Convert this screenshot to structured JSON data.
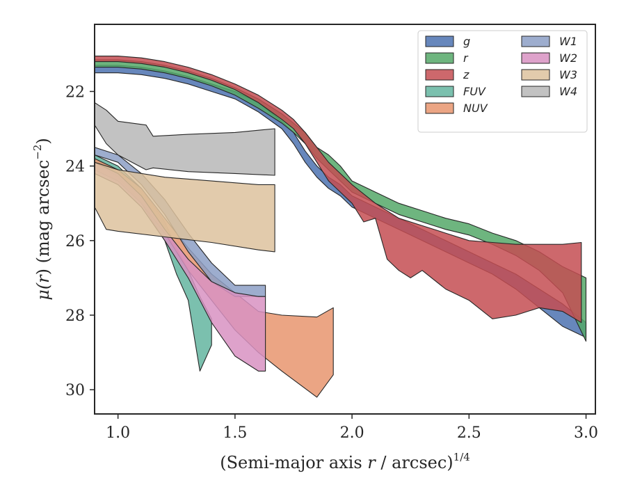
{
  "chart_data": {
    "type": "area",
    "xlabel": "(Semi-major axis r / arcsec)",
    "xlabel_main": "(Semi-major axis ",
    "xlabel_var": "r",
    "xlabel_rest": " / arcsec)",
    "xlabel_exp": "1/4",
    "ylabel_mu": "μ(",
    "ylabel_var": "r",
    "ylabel_mid": ") (mag arcsec",
    "ylabel_exp": "−2",
    "ylabel_end": ")",
    "xlim": [
      0.9,
      3.04
    ],
    "ylim": [
      30.65,
      20.2
    ],
    "y_inverted": true,
    "x_ticks": [
      1.0,
      1.5,
      2.0,
      2.5,
      3.0
    ],
    "x_tick_labels": [
      "1.0",
      "1.5",
      "2.0",
      "2.5",
      "3.0"
    ],
    "y_ticks": [
      22,
      24,
      26,
      28,
      30
    ],
    "y_tick_labels": [
      "22",
      "24",
      "26",
      "28",
      "30"
    ],
    "grid": false,
    "legend": {
      "placement": "top-right",
      "columns": 2
    },
    "series": [
      {
        "name": "g",
        "color": "#4c72b0",
        "upper": [
          [
            0.9,
            21.3
          ],
          [
            1.0,
            21.3
          ],
          [
            1.1,
            21.35
          ],
          [
            1.2,
            21.45
          ],
          [
            1.3,
            21.6
          ],
          [
            1.4,
            21.8
          ],
          [
            1.5,
            22.0
          ],
          [
            1.6,
            22.3
          ],
          [
            1.7,
            22.8
          ],
          [
            1.75,
            23.1
          ],
          [
            1.8,
            23.6
          ],
          [
            1.85,
            24.0
          ],
          [
            1.9,
            24.3
          ],
          [
            1.95,
            24.5
          ],
          [
            2.0,
            24.8
          ],
          [
            2.1,
            25.1
          ],
          [
            2.2,
            25.4
          ],
          [
            2.3,
            25.7
          ],
          [
            2.4,
            26.0
          ],
          [
            2.5,
            26.3
          ],
          [
            2.6,
            26.6
          ],
          [
            2.7,
            26.9
          ],
          [
            2.8,
            27.3
          ],
          [
            2.9,
            27.7
          ],
          [
            3.0,
            28.2
          ]
        ],
        "lower": [
          [
            0.9,
            21.5
          ],
          [
            1.0,
            21.5
          ],
          [
            1.1,
            21.55
          ],
          [
            1.2,
            21.65
          ],
          [
            1.3,
            21.8
          ],
          [
            1.4,
            22.0
          ],
          [
            1.5,
            22.2
          ],
          [
            1.6,
            22.55
          ],
          [
            1.7,
            23.0
          ],
          [
            1.75,
            23.4
          ],
          [
            1.8,
            23.9
          ],
          [
            1.85,
            24.3
          ],
          [
            1.9,
            24.6
          ],
          [
            1.95,
            24.8
          ],
          [
            2.0,
            25.1
          ],
          [
            2.1,
            25.4
          ],
          [
            2.2,
            25.7
          ],
          [
            2.3,
            26.0
          ],
          [
            2.4,
            26.3
          ],
          [
            2.5,
            26.6
          ],
          [
            2.6,
            26.9
          ],
          [
            2.7,
            27.3
          ],
          [
            2.8,
            27.8
          ],
          [
            2.9,
            28.3
          ],
          [
            3.0,
            28.6
          ]
        ]
      },
      {
        "name": "r",
        "color": "#55a868",
        "upper": [
          [
            0.9,
            21.15
          ],
          [
            1.0,
            21.15
          ],
          [
            1.1,
            21.2
          ],
          [
            1.2,
            21.3
          ],
          [
            1.3,
            21.45
          ],
          [
            1.4,
            21.65
          ],
          [
            1.5,
            21.9
          ],
          [
            1.6,
            22.2
          ],
          [
            1.7,
            22.6
          ],
          [
            1.75,
            22.85
          ],
          [
            1.8,
            23.1
          ],
          [
            1.85,
            23.5
          ],
          [
            1.9,
            23.7
          ],
          [
            1.95,
            24.0
          ],
          [
            2.0,
            24.4
          ],
          [
            2.1,
            24.7
          ],
          [
            2.2,
            25.0
          ],
          [
            2.3,
            25.2
          ],
          [
            2.4,
            25.4
          ],
          [
            2.5,
            25.55
          ],
          [
            2.6,
            25.8
          ],
          [
            2.7,
            26.0
          ],
          [
            2.8,
            26.3
          ],
          [
            2.9,
            26.7
          ],
          [
            3.0,
            27.0
          ]
        ],
        "lower": [
          [
            0.9,
            21.35
          ],
          [
            1.0,
            21.35
          ],
          [
            1.1,
            21.4
          ],
          [
            1.2,
            21.5
          ],
          [
            1.3,
            21.65
          ],
          [
            1.4,
            21.85
          ],
          [
            1.5,
            22.1
          ],
          [
            1.6,
            22.45
          ],
          [
            1.7,
            22.85
          ],
          [
            1.75,
            23.1
          ],
          [
            1.8,
            23.4
          ],
          [
            1.85,
            23.8
          ],
          [
            1.9,
            24.1
          ],
          [
            1.95,
            24.4
          ],
          [
            2.0,
            24.7
          ],
          [
            2.1,
            25.0
          ],
          [
            2.2,
            25.3
          ],
          [
            2.3,
            25.5
          ],
          [
            2.4,
            25.7
          ],
          [
            2.5,
            25.85
          ],
          [
            2.6,
            26.1
          ],
          [
            2.7,
            26.4
          ],
          [
            2.8,
            26.8
          ],
          [
            2.9,
            27.4
          ],
          [
            3.0,
            28.7
          ]
        ]
      },
      {
        "name": "z",
        "color": "#c44e52",
        "upper": [
          [
            0.9,
            21.05
          ],
          [
            1.0,
            21.05
          ],
          [
            1.1,
            21.1
          ],
          [
            1.2,
            21.2
          ],
          [
            1.3,
            21.35
          ],
          [
            1.4,
            21.55
          ],
          [
            1.5,
            21.8
          ],
          [
            1.6,
            22.1
          ],
          [
            1.7,
            22.5
          ],
          [
            1.75,
            22.75
          ],
          [
            1.8,
            23.1
          ],
          [
            1.85,
            23.5
          ],
          [
            1.9,
            23.9
          ],
          [
            1.95,
            24.2
          ],
          [
            2.0,
            24.5
          ],
          [
            2.1,
            25.0
          ],
          [
            2.2,
            25.4
          ],
          [
            2.3,
            25.6
          ],
          [
            2.4,
            25.8
          ],
          [
            2.5,
            26.0
          ],
          [
            2.6,
            26.05
          ],
          [
            2.7,
            26.1
          ],
          [
            2.8,
            26.1
          ],
          [
            2.9,
            26.1
          ],
          [
            2.98,
            26.05
          ]
        ],
        "lower": [
          [
            0.9,
            21.2
          ],
          [
            1.0,
            21.2
          ],
          [
            1.1,
            21.25
          ],
          [
            1.2,
            21.35
          ],
          [
            1.3,
            21.5
          ],
          [
            1.4,
            21.7
          ],
          [
            1.5,
            21.95
          ],
          [
            1.6,
            22.3
          ],
          [
            1.7,
            22.75
          ],
          [
            1.75,
            23.0
          ],
          [
            1.8,
            23.4
          ],
          [
            1.85,
            23.9
          ],
          [
            1.9,
            24.4
          ],
          [
            1.95,
            24.7
          ],
          [
            2.0,
            25.0
          ],
          [
            2.05,
            25.5
          ],
          [
            2.1,
            25.4
          ],
          [
            2.15,
            26.5
          ],
          [
            2.2,
            26.8
          ],
          [
            2.25,
            27.0
          ],
          [
            2.3,
            26.8
          ],
          [
            2.4,
            27.3
          ],
          [
            2.5,
            27.6
          ],
          [
            2.6,
            28.1
          ],
          [
            2.7,
            28.0
          ],
          [
            2.8,
            27.8
          ],
          [
            2.9,
            27.9
          ],
          [
            2.98,
            28.2
          ]
        ]
      },
      {
        "name": "FUV",
        "color": "#64b5a0",
        "upper": [
          [
            0.9,
            23.7
          ],
          [
            1.0,
            24.0
          ],
          [
            1.1,
            24.6
          ],
          [
            1.2,
            25.5
          ],
          [
            1.25,
            26.2
          ],
          [
            1.3,
            26.8
          ],
          [
            1.35,
            27.5
          ],
          [
            1.4,
            28.1
          ]
        ],
        "lower": [
          [
            0.9,
            23.9
          ],
          [
            1.0,
            24.3
          ],
          [
            1.1,
            25.0
          ],
          [
            1.2,
            26.0
          ],
          [
            1.25,
            26.9
          ],
          [
            1.3,
            27.6
          ],
          [
            1.35,
            29.5
          ],
          [
            1.4,
            28.8
          ]
        ]
      },
      {
        "name": "NUV",
        "color": "#e8956f",
        "upper": [
          [
            0.9,
            23.8
          ],
          [
            1.0,
            24.1
          ],
          [
            1.1,
            24.6
          ],
          [
            1.2,
            25.4
          ],
          [
            1.3,
            26.2
          ],
          [
            1.4,
            26.9
          ],
          [
            1.5,
            27.4
          ],
          [
            1.6,
            27.9
          ],
          [
            1.7,
            28.0
          ],
          [
            1.85,
            28.05
          ],
          [
            1.92,
            27.8
          ]
        ],
        "lower": [
          [
            0.9,
            24.1
          ],
          [
            1.0,
            24.4
          ],
          [
            1.1,
            25.0
          ],
          [
            1.2,
            25.8
          ],
          [
            1.3,
            26.8
          ],
          [
            1.4,
            27.6
          ],
          [
            1.5,
            28.4
          ],
          [
            1.6,
            29.0
          ],
          [
            1.7,
            29.5
          ],
          [
            1.85,
            30.2
          ],
          [
            1.92,
            29.6
          ]
        ]
      },
      {
        "name": "W1",
        "color": "#8c9fc6",
        "upper": [
          [
            0.9,
            23.5
          ],
          [
            1.0,
            23.7
          ],
          [
            1.1,
            24.2
          ],
          [
            1.2,
            24.9
          ],
          [
            1.3,
            25.8
          ],
          [
            1.4,
            26.6
          ],
          [
            1.5,
            27.2
          ],
          [
            1.6,
            27.2
          ],
          [
            1.63,
            27.2
          ]
        ],
        "lower": [
          [
            0.9,
            23.7
          ],
          [
            1.0,
            23.9
          ],
          [
            1.1,
            24.5
          ],
          [
            1.2,
            25.3
          ],
          [
            1.3,
            26.3
          ],
          [
            1.4,
            27.1
          ],
          [
            1.5,
            27.5
          ],
          [
            1.6,
            27.5
          ],
          [
            1.63,
            27.5
          ]
        ]
      },
      {
        "name": "W2",
        "color": "#d892c2",
        "upper": [
          [
            0.9,
            23.9
          ],
          [
            1.0,
            24.2
          ],
          [
            1.1,
            24.8
          ],
          [
            1.2,
            25.7
          ],
          [
            1.3,
            26.5
          ],
          [
            1.4,
            27.1
          ],
          [
            1.5,
            27.4
          ],
          [
            1.6,
            27.5
          ],
          [
            1.63,
            27.5
          ]
        ],
        "lower": [
          [
            0.9,
            24.2
          ],
          [
            1.0,
            24.5
          ],
          [
            1.1,
            25.1
          ],
          [
            1.2,
            26.0
          ],
          [
            1.3,
            27.0
          ],
          [
            1.4,
            28.2
          ],
          [
            1.5,
            29.1
          ],
          [
            1.6,
            29.5
          ],
          [
            1.63,
            29.5
          ]
        ]
      },
      {
        "name": "W3",
        "color": "#ddc29d",
        "upper": [
          [
            0.9,
            23.9
          ],
          [
            1.0,
            24.1
          ],
          [
            1.2,
            24.3
          ],
          [
            1.4,
            24.4
          ],
          [
            1.6,
            24.5
          ],
          [
            1.67,
            24.5
          ]
        ],
        "lower": [
          [
            0.9,
            25.1
          ],
          [
            0.95,
            25.7
          ],
          [
            1.0,
            25.75
          ],
          [
            1.2,
            25.9
          ],
          [
            1.4,
            26.05
          ],
          [
            1.6,
            26.25
          ],
          [
            1.67,
            26.3
          ]
        ]
      },
      {
        "name": "W4",
        "color": "#b7b7b7",
        "upper": [
          [
            0.9,
            22.3
          ],
          [
            0.95,
            22.5
          ],
          [
            1.0,
            22.8
          ],
          [
            1.12,
            22.9
          ],
          [
            1.15,
            23.2
          ],
          [
            1.3,
            23.15
          ],
          [
            1.5,
            23.1
          ],
          [
            1.67,
            23.0
          ]
        ],
        "lower": [
          [
            0.9,
            22.9
          ],
          [
            0.95,
            23.4
          ],
          [
            1.0,
            23.7
          ],
          [
            1.12,
            24.1
          ],
          [
            1.15,
            24.05
          ],
          [
            1.3,
            24.15
          ],
          [
            1.5,
            24.2
          ],
          [
            1.67,
            24.25
          ]
        ]
      }
    ]
  }
}
